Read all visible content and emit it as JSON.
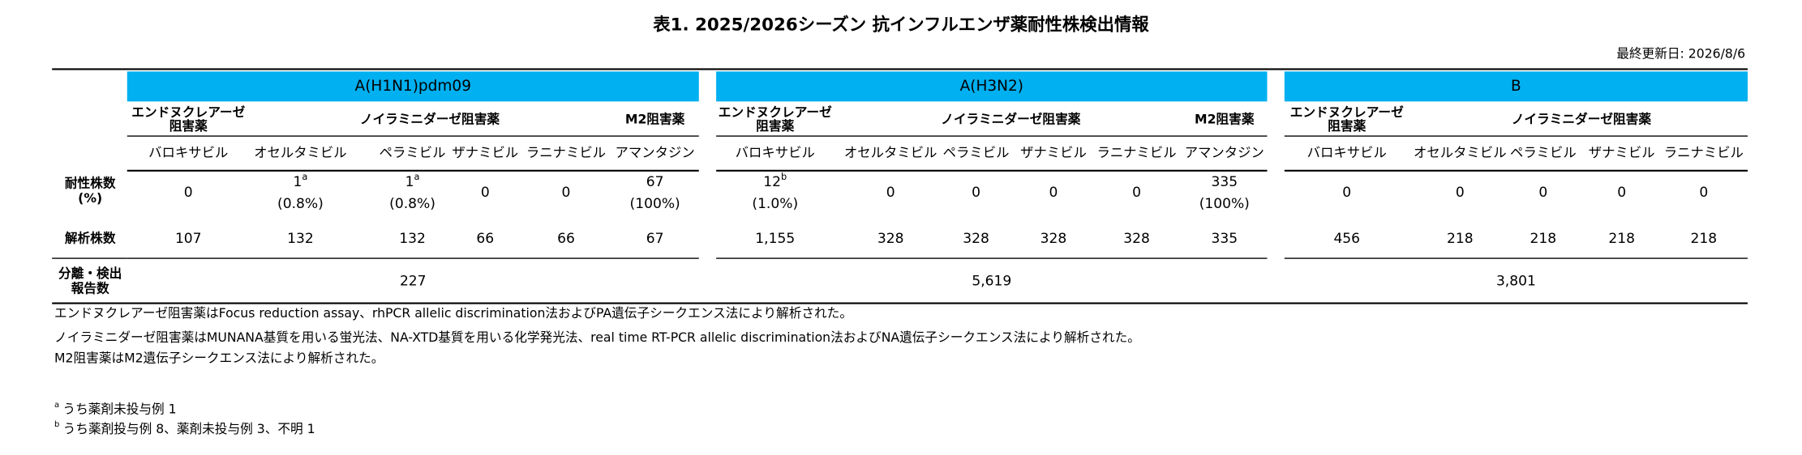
{
  "header": {
    "title": "表1. 2025/2026シーズン 抗インフルエンザ薬耐性株検出情報",
    "updated": "最終更新日:  2026/8/6"
  },
  "table": {
    "row_headers": {
      "resistant": [
        "耐性株数",
        "(%)"
      ],
      "analyzed": "解析株数",
      "isolates": [
        "分離・検出",
        "報告数"
      ]
    },
    "groups": [
      {
        "name": "A(H1N1)pdm09",
        "classes": [
          {
            "label": [
              "エンドヌクレアーゼ",
              "阻害薬"
            ]
          },
          {
            "label": [
              "ノイラミニダーゼ阻害薬"
            ]
          },
          {
            "label": [
              "M2阻害薬"
            ]
          }
        ],
        "drugs": [
          "バロキサビル",
          "オセルタミビル",
          "ペラミビル",
          "ザナミビル",
          "ラニナミビル",
          "アマンタジン"
        ],
        "resistant": [
          {
            "count": "0"
          },
          {
            "count": "1",
            "note": "a",
            "percent": "(0.8%)"
          },
          {
            "count": "1",
            "note": "a",
            "percent": "(0.8%)"
          },
          {
            "count": "0"
          },
          {
            "count": "0"
          },
          {
            "count": "67",
            "percent": "(100%)"
          }
        ],
        "analyzed": [
          "107",
          "132",
          "132",
          "66",
          "66",
          "67"
        ],
        "isolates": "227"
      },
      {
        "name": "A(H3N2)",
        "classes": [
          {
            "label": [
              "エンドヌクレアーゼ",
              "阻害薬"
            ]
          },
          {
            "label": [
              "ノイラミニダーゼ阻害薬"
            ]
          },
          {
            "label": [
              "M2阻害薬"
            ]
          }
        ],
        "drugs": [
          "バロキサビル",
          "オセルタミビル",
          "ペラミビル",
          "ザナミビル",
          "ラニナミビル",
          "アマンタジン"
        ],
        "resistant": [
          {
            "count": "12",
            "note": "b",
            "percent": "(1.0%)"
          },
          {
            "count": "0"
          },
          {
            "count": "0"
          },
          {
            "count": "0"
          },
          {
            "count": "0"
          },
          {
            "count": "335",
            "percent": "(100%)"
          }
        ],
        "analyzed": [
          "1,155",
          "328",
          "328",
          "328",
          "328",
          "335"
        ],
        "isolates": "5,619"
      },
      {
        "name": "B",
        "classes": [
          {
            "label": [
              "エンドヌクレアーゼ",
              "阻害薬"
            ]
          },
          {
            "label": [
              "ノイラミニダーゼ阻害薬"
            ]
          }
        ],
        "drugs": [
          "バロキサビル",
          "オセルタミビル",
          "ペラミビル",
          "ザナミビル",
          "ラニナミビル"
        ],
        "resistant": [
          {
            "count": "0"
          },
          {
            "count": "0"
          },
          {
            "count": "0"
          },
          {
            "count": "0"
          },
          {
            "count": "0"
          }
        ],
        "analyzed": [
          "456",
          "218",
          "218",
          "218",
          "218"
        ],
        "isolates": "3,801"
      }
    ]
  },
  "notes": [
    "エンドヌクレアーゼ阻害薬はFocus reduction assay、rhPCR allelic discrimination法およびPA遺伝子シークエンス法により解析された。",
    "ノイラミニダーゼ阻害薬はMUNANA基質を用いる蛍光法、NA-XTD基質を用いる化学発光法、real time RT-PCR allelic discrimination法およびNA遺伝子シークエンス法により解析された。",
    "M2阻害薬はM2遺伝子シークエンス法により解析された。"
  ],
  "footnotes": [
    {
      "mark": "a",
      "text": "うち薬剤未投与例 1"
    },
    {
      "mark": "b",
      "text": "うち薬剤投与例 8、薬剤未投与例 3、不明 1"
    }
  ]
}
